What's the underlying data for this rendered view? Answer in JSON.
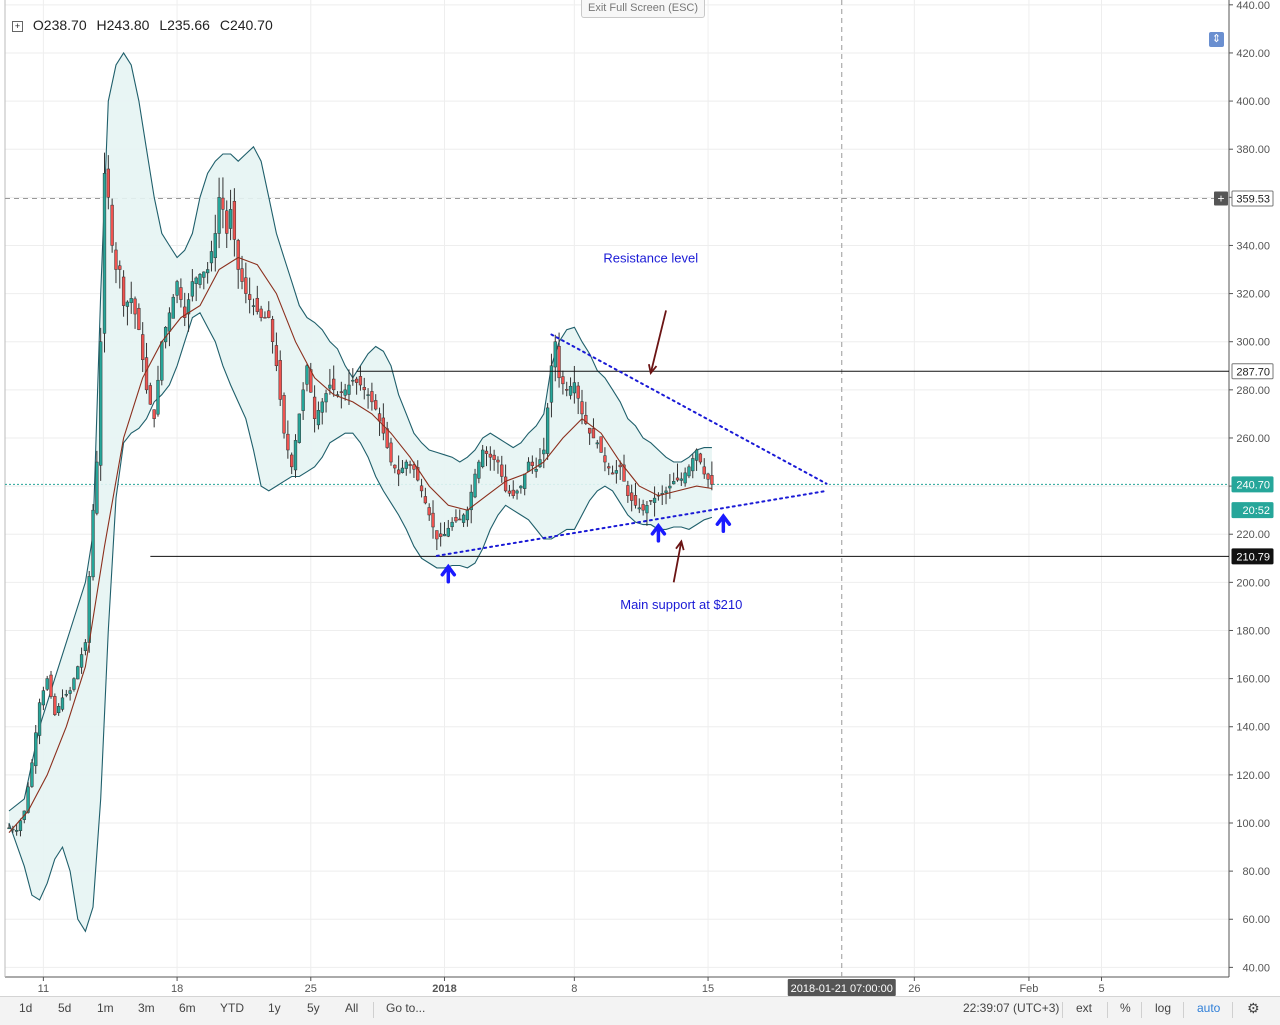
{
  "header": {
    "ohlc": [
      {
        "key": "O",
        "value": "238.70"
      },
      {
        "key": "H",
        "value": "243.80"
      },
      {
        "key": "L",
        "value": "235.66"
      },
      {
        "key": "C",
        "value": "240.70"
      }
    ],
    "exit_full_screen": "Exit Full Screen (ESC)",
    "compare_icon": "compare-icon"
  },
  "chart_data": {
    "type": "line",
    "y_axis": {
      "ylim": [
        36,
        442
      ],
      "ticks": [
        40,
        60,
        80,
        100,
        120,
        140,
        160,
        180,
        200,
        220,
        240,
        260,
        280,
        300,
        320,
        340,
        360,
        380,
        400,
        420,
        440
      ],
      "tick_labels": [
        "40.00",
        "60.00",
        "80.00",
        "100.00",
        "120.00",
        "140.00",
        "160.00",
        "180.00",
        "200.00",
        "220.00",
        "240.00",
        "260.00",
        "280.00",
        "300.00",
        "320.00",
        "340.00",
        "360.00",
        "380.00",
        "400.00",
        "420.00",
        "440.00"
      ]
    },
    "x_axis": {
      "ticks": [
        {
          "label": "11",
          "index": 9
        },
        {
          "label": "18",
          "index": 44
        },
        {
          "label": "25",
          "index": 79
        },
        {
          "label": "2018",
          "index": 114
        },
        {
          "label": "8",
          "index": 148
        },
        {
          "label": "15",
          "index": 183
        },
        {
          "label": "26",
          "index": 237
        },
        {
          "label": "Feb",
          "index": 267
        },
        {
          "label": "5",
          "index": 286
        }
      ],
      "crosshair_label": "2018-01-21 07:00:00",
      "crosshair_index": 218
    },
    "price_labels": [
      {
        "value": 359.53,
        "text": "359.53",
        "style": "crosshair"
      },
      {
        "value": 287.7,
        "text": "287.70",
        "style": "level"
      },
      {
        "value": 240.7,
        "text": "240.70",
        "style": "last"
      },
      {
        "value": 230.0,
        "text": "20:52",
        "style": "timer"
      },
      {
        "value": 210.79,
        "text": "210.79",
        "style": "level-dark"
      }
    ],
    "levels": [
      {
        "value": 287.7,
        "from_index": 91,
        "to_index": 320
      },
      {
        "value": 210.79,
        "from_index": 37,
        "to_index": 320
      }
    ],
    "trendlines": [
      {
        "from": [
          142,
          303
        ],
        "to": [
          214,
          241
        ],
        "style": "dotted"
      },
      {
        "from": [
          112,
          211
        ],
        "to": [
          214,
          238
        ],
        "style": "dotted"
      }
    ],
    "annotations": [
      {
        "text": "Resistance level",
        "x_index": 168,
        "value": 333
      },
      {
        "text": "Main support at $210",
        "x_index": 176,
        "value": 189
      }
    ],
    "arrows_dark": [
      {
        "from": [
          172,
          313
        ],
        "to": [
          168,
          287
        ]
      },
      {
        "from": [
          174,
          200
        ],
        "to": [
          176,
          217
        ]
      }
    ],
    "arrows_blue": [
      {
        "index": 115,
        "value": 204
      },
      {
        "index": 170,
        "value": 221
      },
      {
        "index": 187,
        "value": 225
      }
    ],
    "price_path": [
      [
        0,
        98
      ],
      [
        2,
        97
      ],
      [
        4,
        105
      ],
      [
        6,
        125
      ],
      [
        8,
        150
      ],
      [
        10,
        160
      ],
      [
        12,
        145
      ],
      [
        14,
        152
      ],
      [
        16,
        155
      ],
      [
        18,
        165
      ],
      [
        20,
        175
      ],
      [
        22,
        230
      ],
      [
        23,
        250
      ],
      [
        24,
        300
      ],
      [
        25,
        370
      ],
      [
        26,
        360
      ],
      [
        27,
        340
      ],
      [
        28,
        330
      ],
      [
        29,
        330
      ],
      [
        30,
        315
      ],
      [
        32,
        318
      ],
      [
        34,
        305
      ],
      [
        36,
        280
      ],
      [
        38,
        268
      ],
      [
        40,
        300
      ],
      [
        42,
        312
      ],
      [
        44,
        325
      ],
      [
        46,
        310
      ],
      [
        48,
        325
      ],
      [
        50,
        328
      ],
      [
        52,
        330
      ],
      [
        54,
        345
      ],
      [
        55,
        360
      ],
      [
        56,
        355
      ],
      [
        57,
        345
      ],
      [
        58,
        355
      ],
      [
        60,
        330
      ],
      [
        62,
        320
      ],
      [
        64,
        315
      ],
      [
        66,
        310
      ],
      [
        68,
        310
      ],
      [
        70,
        290
      ],
      [
        72,
        262
      ],
      [
        74,
        248
      ],
      [
        76,
        270
      ],
      [
        78,
        290
      ],
      [
        80,
        268
      ],
      [
        82,
        275
      ],
      [
        84,
        282
      ],
      [
        86,
        278
      ],
      [
        88,
        280
      ],
      [
        90,
        284
      ],
      [
        92,
        282
      ],
      [
        94,
        278
      ],
      [
        96,
        272
      ],
      [
        98,
        262
      ],
      [
        100,
        250
      ],
      [
        102,
        245
      ],
      [
        104,
        250
      ],
      [
        106,
        247
      ],
      [
        108,
        238
      ],
      [
        110,
        228
      ],
      [
        112,
        218
      ],
      [
        114,
        220
      ],
      [
        116,
        225
      ],
      [
        118,
        226
      ],
      [
        120,
        230
      ],
      [
        122,
        245
      ],
      [
        124,
        255
      ],
      [
        126,
        252
      ],
      [
        128,
        250
      ],
      [
        130,
        238
      ],
      [
        132,
        236
      ],
      [
        134,
        240
      ],
      [
        136,
        250
      ],
      [
        138,
        247
      ],
      [
        140,
        255
      ],
      [
        142,
        290
      ],
      [
        143,
        300
      ],
      [
        144,
        285
      ],
      [
        146,
        280
      ],
      [
        148,
        283
      ],
      [
        150,
        270
      ],
      [
        152,
        262
      ],
      [
        154,
        258
      ],
      [
        156,
        250
      ],
      [
        158,
        245
      ],
      [
        160,
        248
      ],
      [
        162,
        236
      ],
      [
        164,
        232
      ],
      [
        166,
        230
      ],
      [
        168,
        234
      ],
      [
        170,
        236
      ],
      [
        172,
        238
      ],
      [
        174,
        242
      ],
      [
        176,
        243
      ],
      [
        178,
        248
      ],
      [
        180,
        255
      ],
      [
        182,
        245
      ],
      [
        184,
        240.7
      ]
    ],
    "ma_path": [
      [
        0,
        96
      ],
      [
        5,
        105
      ],
      [
        10,
        120
      ],
      [
        15,
        140
      ],
      [
        20,
        165
      ],
      [
        25,
        215
      ],
      [
        30,
        260
      ],
      [
        35,
        285
      ],
      [
        40,
        300
      ],
      [
        45,
        310
      ],
      [
        50,
        315
      ],
      [
        55,
        330
      ],
      [
        60,
        335
      ],
      [
        65,
        332
      ],
      [
        70,
        320
      ],
      [
        75,
        300
      ],
      [
        80,
        285
      ],
      [
        85,
        278
      ],
      [
        90,
        275
      ],
      [
        95,
        270
      ],
      [
        100,
        262
      ],
      [
        105,
        252
      ],
      [
        110,
        240
      ],
      [
        115,
        232
      ],
      [
        120,
        230
      ],
      [
        125,
        236
      ],
      [
        130,
        242
      ],
      [
        135,
        245
      ],
      [
        140,
        250
      ],
      [
        145,
        260
      ],
      [
        150,
        268
      ],
      [
        155,
        262
      ],
      [
        160,
        250
      ],
      [
        165,
        240
      ],
      [
        170,
        236
      ],
      [
        175,
        238
      ],
      [
        180,
        240
      ],
      [
        184,
        239
      ]
    ],
    "bb_upper": [
      [
        0,
        105
      ],
      [
        4,
        110
      ],
      [
        8,
        140
      ],
      [
        12,
        160
      ],
      [
        16,
        180
      ],
      [
        20,
        200
      ],
      [
        22,
        220
      ],
      [
        24,
        320
      ],
      [
        26,
        400
      ],
      [
        28,
        415
      ],
      [
        30,
        420
      ],
      [
        32,
        415
      ],
      [
        34,
        400
      ],
      [
        36,
        380
      ],
      [
        38,
        360
      ],
      [
        40,
        345
      ],
      [
        42,
        340
      ],
      [
        44,
        335
      ],
      [
        46,
        338
      ],
      [
        48,
        345
      ],
      [
        50,
        360
      ],
      [
        52,
        370
      ],
      [
        54,
        375
      ],
      [
        56,
        378
      ],
      [
        58,
        378
      ],
      [
        60,
        375
      ],
      [
        62,
        378
      ],
      [
        64,
        381
      ],
      [
        66,
        375
      ],
      [
        68,
        360
      ],
      [
        70,
        345
      ],
      [
        72,
        335
      ],
      [
        74,
        325
      ],
      [
        76,
        315
      ],
      [
        78,
        310
      ],
      [
        80,
        308
      ],
      [
        82,
        305
      ],
      [
        84,
        300
      ],
      [
        86,
        297
      ],
      [
        88,
        290
      ],
      [
        90,
        285
      ],
      [
        92,
        290
      ],
      [
        94,
        295
      ],
      [
        96,
        298
      ],
      [
        98,
        296
      ],
      [
        100,
        290
      ],
      [
        102,
        278
      ],
      [
        104,
        270
      ],
      [
        106,
        262
      ],
      [
        108,
        258
      ],
      [
        110,
        255
      ],
      [
        112,
        254
      ],
      [
        114,
        253
      ],
      [
        116,
        252
      ],
      [
        118,
        250
      ],
      [
        120,
        252
      ],
      [
        122,
        255
      ],
      [
        124,
        260
      ],
      [
        126,
        262
      ],
      [
        128,
        260
      ],
      [
        130,
        258
      ],
      [
        132,
        256
      ],
      [
        134,
        258
      ],
      [
        136,
        262
      ],
      [
        138,
        265
      ],
      [
        140,
        270
      ],
      [
        142,
        290
      ],
      [
        144,
        300
      ],
      [
        146,
        305
      ],
      [
        148,
        306
      ],
      [
        150,
        300
      ],
      [
        152,
        295
      ],
      [
        154,
        288
      ],
      [
        156,
        285
      ],
      [
        158,
        280
      ],
      [
        160,
        275
      ],
      [
        162,
        268
      ],
      [
        164,
        265
      ],
      [
        166,
        260
      ],
      [
        168,
        258
      ],
      [
        170,
        255
      ],
      [
        172,
        252
      ],
      [
        174,
        250
      ],
      [
        176,
        250
      ],
      [
        178,
        252
      ],
      [
        180,
        255
      ],
      [
        182,
        256
      ],
      [
        184,
        256
      ]
    ],
    "bb_lower": [
      [
        0,
        100
      ],
      [
        4,
        82
      ],
      [
        6,
        70
      ],
      [
        8,
        68
      ],
      [
        10,
        75
      ],
      [
        12,
        85
      ],
      [
        14,
        90
      ],
      [
        16,
        80
      ],
      [
        18,
        60
      ],
      [
        20,
        55
      ],
      [
        22,
        65
      ],
      [
        24,
        110
      ],
      [
        26,
        180
      ],
      [
        28,
        235
      ],
      [
        30,
        258
      ],
      [
        32,
        262
      ],
      [
        34,
        264
      ],
      [
        36,
        268
      ],
      [
        38,
        275
      ],
      [
        40,
        278
      ],
      [
        42,
        282
      ],
      [
        44,
        290
      ],
      [
        46,
        300
      ],
      [
        48,
        310
      ],
      [
        50,
        312
      ],
      [
        52,
        306
      ],
      [
        54,
        300
      ],
      [
        56,
        290
      ],
      [
        58,
        282
      ],
      [
        60,
        275
      ],
      [
        62,
        268
      ],
      [
        64,
        255
      ],
      [
        66,
        240
      ],
      [
        68,
        238
      ],
      [
        70,
        240
      ],
      [
        72,
        242
      ],
      [
        74,
        244
      ],
      [
        76,
        244
      ],
      [
        78,
        246
      ],
      [
        80,
        248
      ],
      [
        82,
        252
      ],
      [
        84,
        258
      ],
      [
        86,
        260
      ],
      [
        88,
        262
      ],
      [
        90,
        262
      ],
      [
        92,
        258
      ],
      [
        94,
        252
      ],
      [
        96,
        244
      ],
      [
        98,
        238
      ],
      [
        100,
        233
      ],
      [
        102,
        228
      ],
      [
        104,
        222
      ],
      [
        106,
        215
      ],
      [
        108,
        210
      ],
      [
        110,
        208
      ],
      [
        112,
        206
      ],
      [
        114,
        206
      ],
      [
        116,
        207
      ],
      [
        118,
        207
      ],
      [
        120,
        206
      ],
      [
        122,
        208
      ],
      [
        124,
        214
      ],
      [
        126,
        222
      ],
      [
        128,
        228
      ],
      [
        130,
        232
      ],
      [
        132,
        230
      ],
      [
        134,
        228
      ],
      [
        136,
        226
      ],
      [
        138,
        222
      ],
      [
        140,
        218
      ],
      [
        142,
        218
      ],
      [
        144,
        220
      ],
      [
        146,
        222
      ],
      [
        148,
        222
      ],
      [
        150,
        228
      ],
      [
        152,
        234
      ],
      [
        154,
        238
      ],
      [
        156,
        240
      ],
      [
        158,
        238
      ],
      [
        160,
        233
      ],
      [
        162,
        228
      ],
      [
        164,
        225
      ],
      [
        166,
        224
      ],
      [
        168,
        224
      ],
      [
        170,
        222
      ],
      [
        172,
        222
      ],
      [
        174,
        223
      ],
      [
        176,
        223
      ],
      [
        178,
        222
      ],
      [
        180,
        224
      ],
      [
        182,
        226
      ],
      [
        184,
        227
      ]
    ]
  },
  "toolbar": {
    "ranges": [
      "1d",
      "5d",
      "1m",
      "3m",
      "6m",
      "YTD",
      "1y",
      "5y",
      "All"
    ],
    "goto": "Go to...",
    "clock": "22:39:07 (UTC+3)",
    "options": [
      "ext",
      "%",
      "log",
      "auto"
    ],
    "settings_icon": "gear-icon"
  },
  "colors": {
    "up": "#26a69a",
    "down": "#ef5350",
    "band_fill": "#e6f4f3",
    "band_line": "#1f5f6b",
    "ma": "#8b2f1d",
    "trend": "#1a1ad6",
    "annotation": "#1a1ad6",
    "arrow_dark": "#6b1414",
    "arrow_blue": "#1a1aff"
  }
}
